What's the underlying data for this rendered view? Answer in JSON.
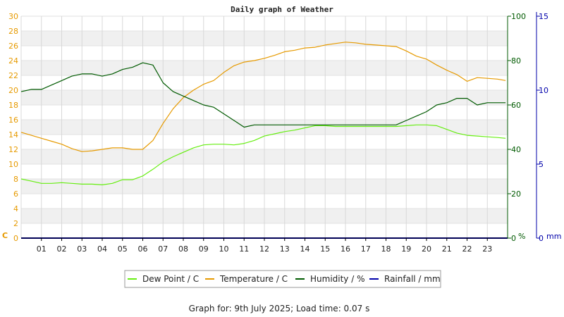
{
  "chart_data": {
    "type": "line",
    "title": "Daily graph of Weather",
    "x_ticks": [
      "01",
      "02",
      "03",
      "04",
      "05",
      "06",
      "07",
      "08",
      "09",
      "10",
      "11",
      "12",
      "13",
      "14",
      "15",
      "16",
      "17",
      "18",
      "19",
      "20",
      "21",
      "22",
      "23"
    ],
    "xlim": [
      0,
      24
    ],
    "axes": {
      "left": {
        "unit": "C",
        "ticks": [
          "0",
          "2",
          "4",
          "6",
          "8",
          "10",
          "12",
          "14",
          "16",
          "18",
          "20",
          "22",
          "24",
          "26",
          "28",
          "30"
        ],
        "ylim": [
          0,
          30
        ],
        "color": "#e69a00"
      },
      "right1": {
        "unit": "%",
        "ticks": [
          "0",
          "20",
          "40",
          "60",
          "80",
          "100"
        ],
        "ylim": [
          0,
          100
        ],
        "color": "#005a00"
      },
      "right2": {
        "unit": "mm",
        "ticks": [
          "0",
          "5",
          "10",
          "15"
        ],
        "ylim": [
          0,
          15
        ],
        "color": "#0000aa"
      }
    },
    "grid": true,
    "series": [
      {
        "name": "Dew Point / C",
        "axis": "left",
        "color": "#66ee11",
        "x": [
          0,
          0.5,
          1,
          1.5,
          2,
          2.5,
          3,
          3.5,
          4,
          4.5,
          5,
          5.5,
          6,
          6.5,
          7,
          7.5,
          8,
          8.5,
          9,
          9.5,
          10,
          10.5,
          11,
          11.5,
          12,
          12.5,
          13,
          13.5,
          14,
          14.5,
          15,
          15.5,
          16,
          16.5,
          17,
          17.5,
          18,
          18.5,
          19,
          19.5,
          20,
          20.5,
          21,
          21.5,
          22,
          22.5,
          23,
          23.5,
          23.9
        ],
        "values": [
          8.0,
          7.7,
          7.4,
          7.4,
          7.5,
          7.4,
          7.3,
          7.3,
          7.2,
          7.4,
          7.9,
          7.9,
          8.4,
          9.3,
          10.3,
          11.0,
          11.6,
          12.2,
          12.6,
          12.7,
          12.7,
          12.6,
          12.8,
          13.2,
          13.8,
          14.1,
          14.4,
          14.6,
          14.9,
          15.2,
          15.2,
          15.1,
          15.1,
          15.1,
          15.1,
          15.1,
          15.1,
          15.1,
          15.2,
          15.3,
          15.3,
          15.2,
          14.7,
          14.2,
          13.9,
          13.8,
          13.7,
          13.6,
          13.5
        ]
      },
      {
        "name": "Temperature / C",
        "axis": "left",
        "color": "#e69a00",
        "x": [
          0,
          0.5,
          1,
          1.5,
          2,
          2.5,
          3,
          3.5,
          4,
          4.5,
          5,
          5.5,
          6,
          6.5,
          7,
          7.5,
          8,
          8.5,
          9,
          9.5,
          10,
          10.5,
          11,
          11.5,
          12,
          12.5,
          13,
          13.5,
          14,
          14.5,
          15,
          15.5,
          16,
          16.5,
          17,
          17.5,
          18,
          18.5,
          19,
          19.5,
          20,
          20.5,
          21,
          21.5,
          22,
          22.5,
          23,
          23.5,
          23.9
        ],
        "values": [
          14.3,
          13.9,
          13.5,
          13.1,
          12.7,
          12.1,
          11.7,
          11.8,
          12.0,
          12.2,
          12.2,
          12.0,
          12.0,
          13.2,
          15.5,
          17.5,
          19.0,
          20.0,
          20.8,
          21.3,
          22.4,
          23.3,
          23.8,
          24.0,
          24.3,
          24.7,
          25.2,
          25.4,
          25.7,
          25.8,
          26.1,
          26.3,
          26.5,
          26.4,
          26.2,
          26.1,
          26.0,
          25.9,
          25.3,
          24.6,
          24.2,
          23.4,
          22.7,
          22.1,
          21.2,
          21.7,
          21.6,
          21.5,
          21.3
        ]
      },
      {
        "name": "Humidity / %",
        "axis": "right1",
        "color": "#005a00",
        "x": [
          0,
          0.5,
          1,
          1.5,
          2,
          2.5,
          3,
          3.5,
          4,
          4.5,
          5,
          5.5,
          6,
          6.5,
          7,
          7.5,
          8,
          8.5,
          9,
          9.5,
          10,
          10.5,
          11,
          11.5,
          12,
          12.5,
          13,
          13.5,
          14,
          14.5,
          15,
          15.5,
          16,
          16.5,
          17,
          17.5,
          18,
          18.5,
          19,
          19.5,
          20,
          20.5,
          21,
          21.5,
          22,
          22.5,
          23,
          23.5,
          23.9
        ],
        "values": [
          66,
          67,
          67,
          69,
          71,
          73,
          74,
          74,
          73,
          74,
          76,
          77,
          79,
          78,
          70,
          66,
          64,
          62,
          60,
          59,
          56,
          53,
          50,
          51,
          51,
          51,
          51,
          51,
          51,
          51,
          51,
          51,
          51,
          51,
          51,
          51,
          51,
          51,
          53,
          55,
          57,
          60,
          61,
          63,
          63,
          60,
          61,
          61,
          61
        ]
      },
      {
        "name": "Rainfall / mm",
        "axis": "right2",
        "color": "#0000aa",
        "x": [
          0,
          24
        ],
        "values": [
          0,
          0
        ]
      }
    ]
  },
  "footer": {
    "text": "Graph for: 9th July 2025; Load time: 0.07 s"
  }
}
